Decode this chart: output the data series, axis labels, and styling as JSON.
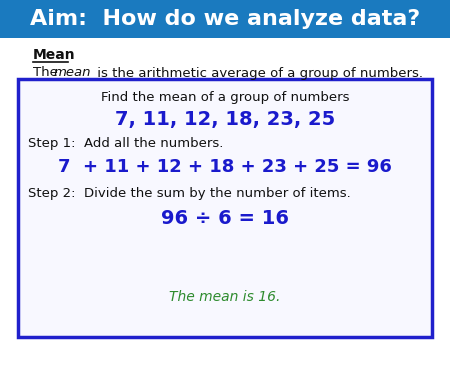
{
  "title": "Aim:  How do we analyze data?",
  "title_bg_color": "#1a7abf",
  "title_text_color": "#ffffff",
  "title_fontsize": 16,
  "section_label": "Mean",
  "section_desc_rest": " is the arithmetic average of a group of numbers.",
  "box_border_color": "#2020cc",
  "box_bg_color": "#f8f8ff",
  "find_text": "Find the mean of a group of numbers",
  "numbers_text": "7, 11, 12, 18, 23, 25",
  "step1_label": "Step 1:  Add all the numbers.",
  "step1_eq": "7  + 11 + 12 + 18 + 23 + 25 = 96",
  "step2_label": "Step 2:  Divide the sum by the number of items.",
  "step2_eq": "96 ÷ 6 = 16",
  "conclusion": "The mean is 16.",
  "blue_color": "#1a1acc",
  "green_color": "#2e8b2e",
  "black_color": "#111111",
  "bg_color": "#ffffff"
}
